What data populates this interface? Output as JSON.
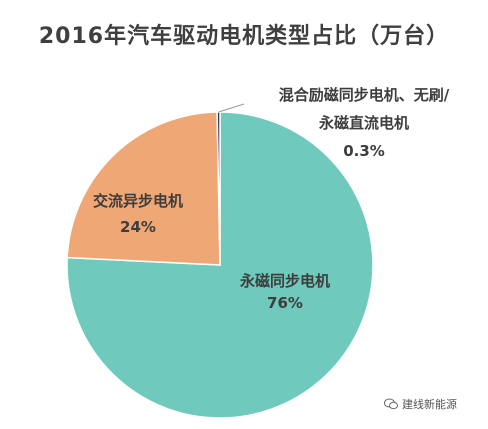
{
  "title": "2016年汽车驱动电机类型占比（万台）",
  "chart_data": {
    "type": "pie",
    "title": "2016年汽车驱动电机类型占比（万台）",
    "slices": [
      {
        "label_lines": [
          "永磁同步电机"
        ],
        "value": 76,
        "value_label": "76%",
        "color": "#70c9bd"
      },
      {
        "label_lines": [
          "交流异步电机"
        ],
        "value": 24,
        "value_label": "24%",
        "color": "#f0a776"
      },
      {
        "label_lines": [
          "混合励磁同步电机、无刷/",
          "永磁直流电机"
        ],
        "value": 0.3,
        "value_label": "0.3%",
        "color": "#1f3864"
      }
    ]
  },
  "watermark": {
    "text": "建线新能源",
    "icon": "wechat-icon"
  }
}
